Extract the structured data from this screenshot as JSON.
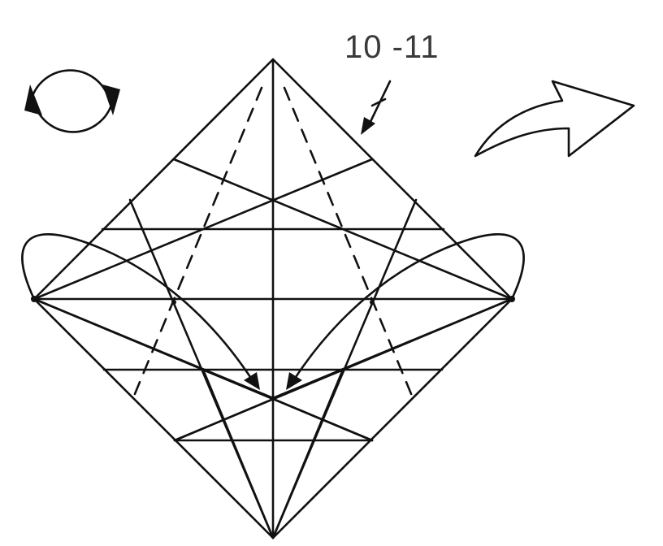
{
  "step_label": "10 -11",
  "icons": {
    "turn_over": "rotate-over-icon",
    "step_arrow": "turn-page-arrow-icon"
  },
  "colors": {
    "line": "#111111",
    "label": "#3a3a3a",
    "background": "#ffffff"
  }
}
